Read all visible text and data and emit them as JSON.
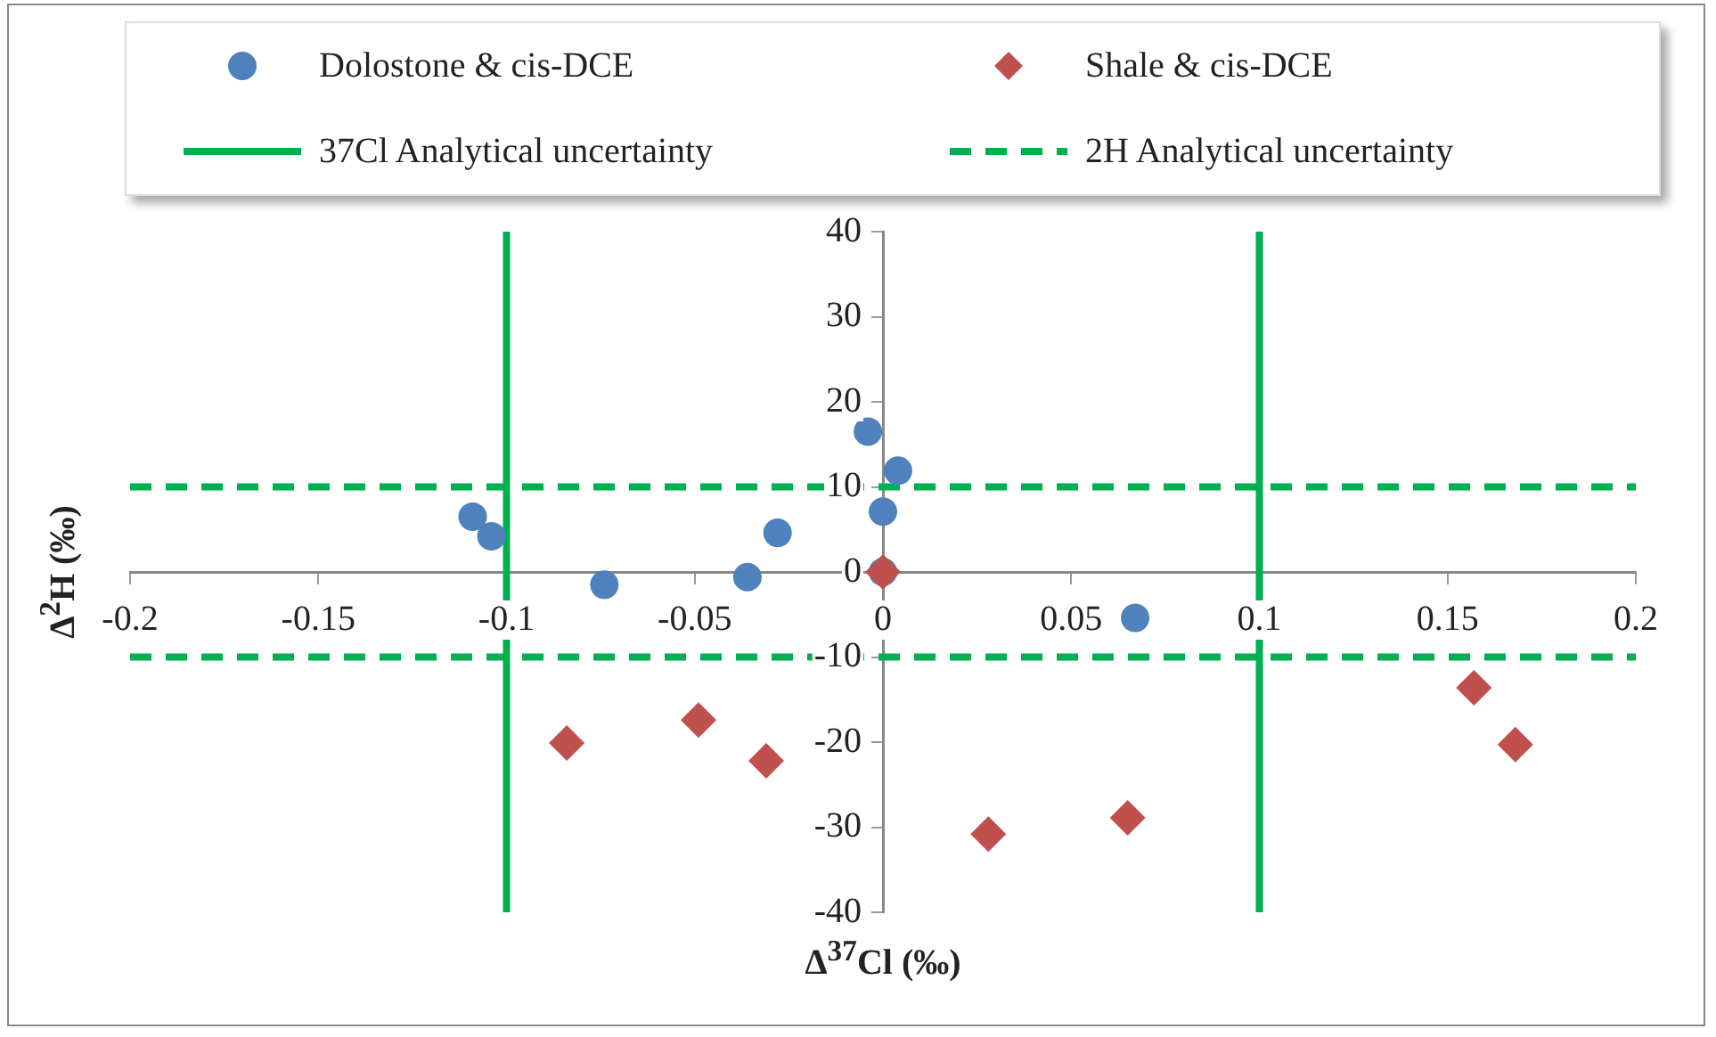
{
  "chart_data": {
    "type": "scatter",
    "xlabel": "Δ$^{37}$Cl (‰)",
    "ylabel": "Δ$^{2}$H (‰)",
    "xlim": [
      -0.2,
      0.2
    ],
    "xticks": [
      -0.2,
      -0.15,
      -0.1,
      -0.05,
      0,
      0.05,
      0.1,
      0.15,
      0.2
    ],
    "ylim": [
      -40,
      40
    ],
    "yticks": [
      -40,
      -30,
      -20,
      -10,
      0,
      10,
      20,
      30,
      40
    ],
    "grid": false,
    "legend": "top",
    "series": [
      {
        "name": "Dolostone & cis-DCE",
        "type": "scatter",
        "marker": "circle",
        "color": "#4f81bd",
        "x": [
          -0.109,
          -0.104,
          -0.074,
          -0.036,
          -0.028,
          -0.004,
          0.004,
          0,
          0,
          0.067
        ],
        "values": [
          6.5,
          4.2,
          -1.5,
          -0.6,
          4.6,
          16.5,
          11.9,
          7.1,
          0,
          -5.4
        ]
      },
      {
        "name": "Shale & cis-DCE",
        "type": "scatter",
        "marker": "diamond",
        "color": "#c0504d",
        "x": [
          -0.084,
          -0.049,
          -0.031,
          0,
          0.028,
          0.065,
          0.157,
          0.168
        ],
        "values": [
          -20.1,
          -17.4,
          -22.2,
          0,
          -30.8,
          -28.9,
          -13.6,
          -20.3
        ]
      },
      {
        "name": "37Cl Analytical uncertainty",
        "type": "line",
        "marker": "none",
        "line_style": "solid",
        "color": "#00b050",
        "x": [
          -0.1,
          -0.1
        ],
        "values": [
          40,
          -40
        ]
      },
      {
        "type": "line",
        "marker": "none",
        "line_style": "solid",
        "color": "#00b050",
        "x": [
          0.1,
          0.1
        ],
        "values": [
          40,
          -40
        ]
      },
      {
        "name": "2H Analytical uncertainty",
        "type": "line",
        "marker": "none",
        "line_style": "dashed",
        "color": "#00b050",
        "x": [
          -0.2,
          0.2
        ],
        "values": [
          10,
          10
        ]
      },
      {
        "type": "line",
        "marker": "none",
        "line_style": "dashed",
        "color": "#00b050",
        "x": [
          -0.2,
          0.2
        ],
        "values": [
          -10,
          -10
        ]
      }
    ]
  }
}
